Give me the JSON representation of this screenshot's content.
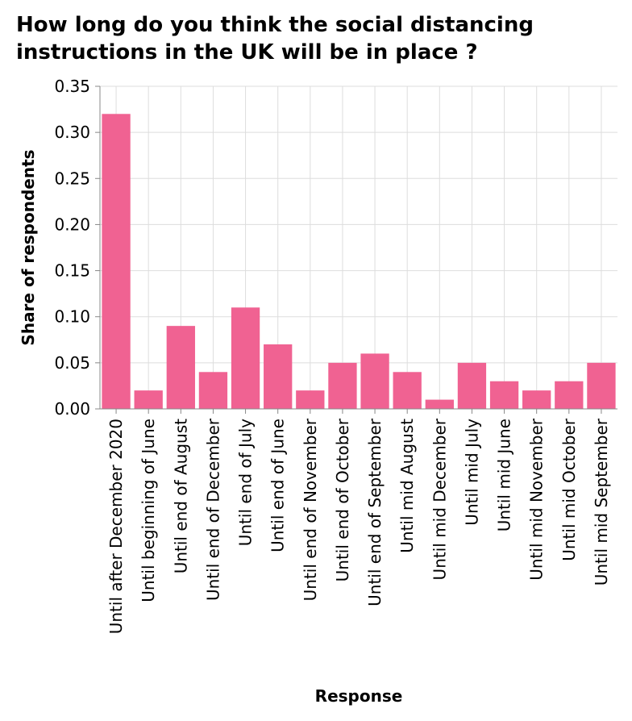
{
  "chart_data": {
    "type": "bar",
    "title": "How long do you think the social distancing instructions in the UK will be in place ?",
    "xlabel": "Response",
    "ylabel": "Share of respondents",
    "categories": [
      "Until after December 2020",
      "Until beginning of June",
      "Until end of August",
      "Until end of December",
      "Until end of July",
      "Until end of June",
      "Until end of November",
      "Until end of October",
      "Until end of September",
      "Until mid August",
      "Until mid December",
      "Until mid July",
      "Until mid June",
      "Until mid November",
      "Until mid October",
      "Until mid September"
    ],
    "values": [
      0.32,
      0.02,
      0.09,
      0.04,
      0.11,
      0.07,
      0.02,
      0.05,
      0.06,
      0.04,
      0.01,
      0.05,
      0.03,
      0.02,
      0.03,
      0.05
    ],
    "ylim": [
      0,
      0.35
    ],
    "yticks": [
      "0.00",
      "0.05",
      "0.10",
      "0.15",
      "0.20",
      "0.25",
      "0.30",
      "0.35"
    ],
    "grid": true,
    "bar_color": "#f06292"
  }
}
